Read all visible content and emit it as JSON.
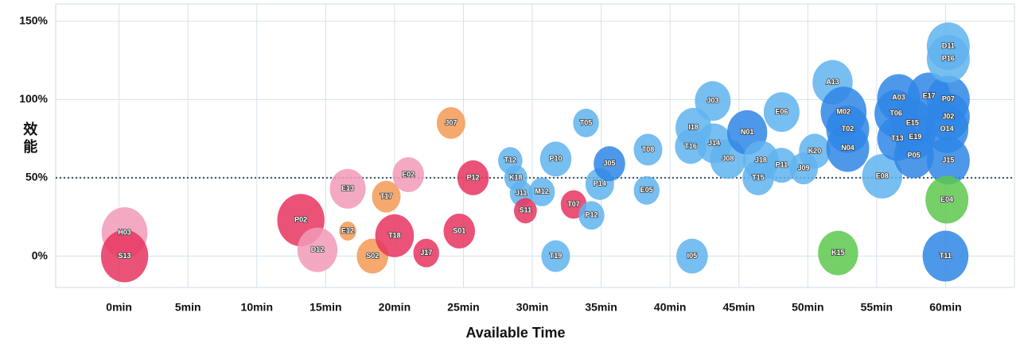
{
  "chart_data": {
    "type": "bubble",
    "xlabel": "Available Time",
    "ylabel": "效能",
    "xlim": [
      -4.6,
      65
    ],
    "ylim": [
      -20,
      161
    ],
    "xticks": [
      {
        "value": 0,
        "label": "0min"
      },
      {
        "value": 5,
        "label": "5min"
      },
      {
        "value": 10,
        "label": "10min"
      },
      {
        "value": 15,
        "label": "15min"
      },
      {
        "value": 20,
        "label": "20min"
      },
      {
        "value": 25,
        "label": "25min"
      },
      {
        "value": 30,
        "label": "30min"
      },
      {
        "value": 35,
        "label": "35min"
      },
      {
        "value": 40,
        "label": "40min"
      },
      {
        "value": 45,
        "label": "45min"
      },
      {
        "value": 50,
        "label": "50min"
      },
      {
        "value": 55,
        "label": "55min"
      },
      {
        "value": 60,
        "label": "60min"
      }
    ],
    "yticks": [
      {
        "value": 0,
        "label": "0%"
      },
      {
        "value": 50,
        "label": "50%"
      },
      {
        "value": 100,
        "label": "100%"
      },
      {
        "value": 150,
        "label": "150%"
      }
    ],
    "grid": true,
    "reference_line": 50,
    "labels": [
      "H03",
      "S13",
      "P02",
      "D12",
      "E13",
      "E12",
      "S02",
      "T18",
      "T17",
      "E02",
      "J17",
      "S01",
      "J07",
      "P12",
      "T12",
      "K18",
      "J11",
      "S11",
      "M12",
      "P10",
      "T19",
      "T07",
      "P12",
      "P14",
      "T05",
      "J05",
      "T08",
      "E05",
      "I05",
      "I18",
      "T16",
      "J03",
      "J14",
      "J08",
      "N01",
      "J18",
      "T15",
      "P11",
      "E06",
      "J09",
      "K20",
      "A13",
      "M02",
      "T02",
      "N04",
      "K15",
      "E08",
      "A03",
      "T06",
      "E15",
      "E19",
      "T13",
      "P05",
      "E17",
      "P07",
      "J02",
      "O14",
      "J15",
      "D11",
      "P16",
      "E04",
      "T11"
    ],
    "x": [
      0.4,
      0.4,
      13.2,
      14.4,
      16.6,
      16.6,
      18.4,
      20,
      19.4,
      21,
      22.3,
      24.7,
      24.1,
      25.7,
      28.4,
      28.8,
      29.2,
      29.5,
      30.7,
      31.7,
      31.7,
      33,
      34.3,
      34.9,
      33.9,
      35.6,
      38.4,
      38.3,
      41.6,
      41.7,
      41.5,
      43.1,
      43.2,
      44.2,
      45.6,
      46.6,
      46.4,
      48.1,
      48.1,
      49.7,
      50.5,
      51.8,
      52.6,
      52.9,
      52.9,
      52.2,
      55.4,
      56.6,
      56.4,
      57.6,
      57.8,
      56.5,
      57.7,
      58.8,
      60.2,
      60.2,
      60.1,
      60.2,
      60.2,
      60.2,
      60.1,
      60
    ],
    "values": [
      15,
      0,
      23,
      4,
      43,
      16,
      0,
      13,
      38,
      52,
      2,
      16,
      85,
      50,
      61,
      50,
      40,
      29,
      41,
      62,
      0,
      33,
      26,
      46,
      85,
      59,
      68,
      42,
      0,
      82,
      70,
      99,
      72,
      62,
      79,
      61,
      50,
      58,
      92,
      56,
      67,
      111,
      92,
      81,
      69,
      2,
      51,
      101,
      91,
      85,
      76,
      75,
      64,
      102,
      100,
      89,
      81,
      61,
      134,
      126,
      36,
      0
    ],
    "sizes": [
      32,
      33,
      33,
      28,
      25,
      12,
      22,
      27,
      20,
      22,
      18,
      22,
      20,
      22,
      17,
      16,
      16,
      16,
      18,
      22,
      20,
      18,
      18,
      20,
      18,
      22,
      20,
      18,
      22,
      25,
      22,
      25,
      25,
      25,
      28,
      25,
      22,
      22,
      25,
      20,
      22,
      28,
      32,
      30,
      30,
      28,
      28,
      30,
      30,
      30,
      28,
      28,
      28,
      30,
      30,
      30,
      30,
      30,
      30,
      30,
      30,
      32
    ],
    "colors": [
      "#f29ab8",
      "#e8345f",
      "#e8345f",
      "#f29ab8",
      "#f29ab8",
      "#f39a55",
      "#f39a55",
      "#e8345f",
      "#f39a55",
      "#f29ab8",
      "#e8345f",
      "#e8345f",
      "#f39a55",
      "#e8345f",
      "#5fb3ee",
      "#5fb3ee",
      "#5fb3ee",
      "#e8345f",
      "#5fb3ee",
      "#5fb3ee",
      "#5fb3ee",
      "#e8345f",
      "#5fb3ee",
      "#5fb3ee",
      "#5fb3ee",
      "#2f86e6",
      "#5fb3ee",
      "#5fb3ee",
      "#5fb3ee",
      "#5fb3ee",
      "#5fb3ee",
      "#5fb3ee",
      "#5fb3ee",
      "#5fb3ee",
      "#2f86e6",
      "#5fb3ee",
      "#5fb3ee",
      "#5fb3ee",
      "#5fb3ee",
      "#5fb3ee",
      "#5fb3ee",
      "#5fb3ee",
      "#2f86e6",
      "#2f86e6",
      "#2f86e6",
      "#5cc84c",
      "#5fb3ee",
      "#2f86e6",
      "#2f86e6",
      "#2f86e6",
      "#2f86e6",
      "#2f86e6",
      "#2f86e6",
      "#2f86e6",
      "#2f86e6",
      "#2f86e6",
      "#2f86e6",
      "#2f86e6",
      "#5fb3ee",
      "#5fb3ee",
      "#5cc84c",
      "#2f86e6"
    ]
  }
}
